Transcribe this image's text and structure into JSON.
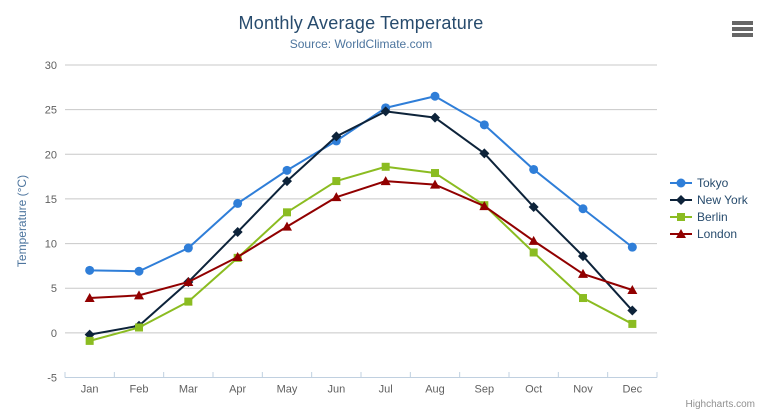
{
  "chart_data": {
    "type": "line",
    "title": "Monthly Average Temperature",
    "subtitle": "Source: WorldClimate.com",
    "xlabel": "",
    "ylabel": "Temperature (°C)",
    "categories": [
      "Jan",
      "Feb",
      "Mar",
      "Apr",
      "May",
      "Jun",
      "Jul",
      "Aug",
      "Sep",
      "Oct",
      "Nov",
      "Dec"
    ],
    "series": [
      {
        "name": "Tokyo",
        "color": "#2f7ed8",
        "marker": "circle",
        "values": [
          7.0,
          6.9,
          9.5,
          14.5,
          18.2,
          21.5,
          25.2,
          26.5,
          23.3,
          18.3,
          13.9,
          9.6
        ]
      },
      {
        "name": "New York",
        "color": "#0d233a",
        "marker": "diamond",
        "values": [
          -0.2,
          0.8,
          5.7,
          11.3,
          17.0,
          22.0,
          24.8,
          24.1,
          20.1,
          14.1,
          8.6,
          2.5
        ]
      },
      {
        "name": "Berlin",
        "color": "#8bbc21",
        "marker": "square",
        "values": [
          -0.9,
          0.6,
          3.5,
          8.4,
          13.5,
          17.0,
          18.6,
          17.9,
          14.3,
          9.0,
          3.9,
          1.0
        ]
      },
      {
        "name": "London",
        "color": "#910000",
        "marker": "triangle",
        "values": [
          3.9,
          4.2,
          5.7,
          8.5,
          11.9,
          15.2,
          17.0,
          16.6,
          14.2,
          10.3,
          6.6,
          4.8
        ]
      }
    ],
    "ylim": [
      -5,
      30
    ],
    "ytick_step": 5,
    "yticks": [
      -5,
      0,
      5,
      10,
      15,
      20,
      25,
      30
    ],
    "grid": true,
    "legend_position": "right"
  },
  "colors": {
    "background": "#ffffff",
    "grid": "#c8c8c8",
    "axis_line": "#c0d0e0",
    "tick": "#c0d0e0",
    "axis_label": "#606060",
    "title": "#274b6d",
    "subtitle": "#4d759e",
    "axis_title": "#4d759e",
    "legend_text": "#274b6d",
    "credits": "#909090",
    "hamburger": "#666666"
  },
  "credits": {
    "label": "Highcharts.com"
  },
  "export_menu": {
    "icon": "hamburger-icon"
  }
}
